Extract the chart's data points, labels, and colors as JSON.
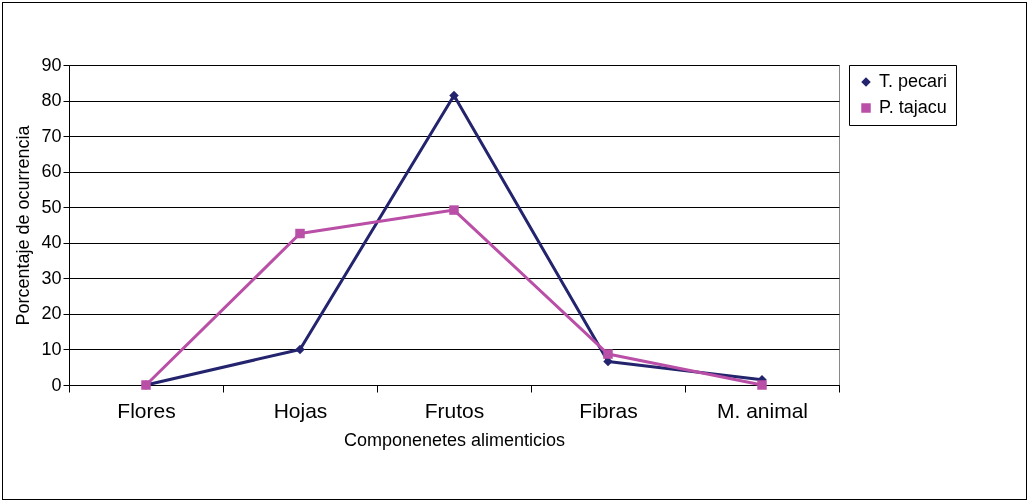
{
  "chart_data": {
    "type": "line",
    "xlabel": "Componenetes alimenticios",
    "ylabel": "Porcentaje de ocurrencia",
    "categories": [
      "Flores",
      "Hojas",
      "Frutos",
      "Fibras",
      "M. animal"
    ],
    "series": [
      {
        "name": "T. pecari",
        "color": "#23236e",
        "marker": "diamond",
        "values": [
          0,
          10,
          81.4,
          6.6,
          1.5
        ]
      },
      {
        "name": "P. tajacu",
        "color": "#b94fa6",
        "marker": "square",
        "values": [
          0,
          42.6,
          49.2,
          8.7,
          0
        ]
      }
    ],
    "ylim": [
      0,
      90
    ],
    "yticks": [
      0,
      10,
      20,
      30,
      40,
      50,
      60,
      70,
      80,
      90
    ],
    "grid": "y",
    "legend": "right",
    "line_style": "solid"
  }
}
